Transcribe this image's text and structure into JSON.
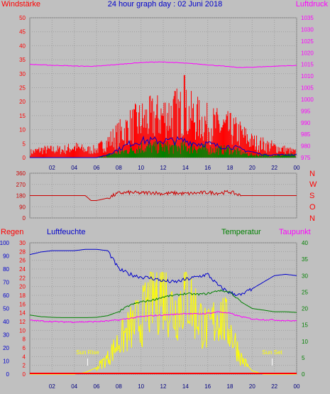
{
  "colors": {
    "background": "#c0c0c0",
    "wind_gust": "#ff0000",
    "wind_avg": "#008000",
    "wind_line": "#0000cc",
    "pressure": "#ff00ff",
    "wind_direction": "#cc0000",
    "rain": "#ff0000",
    "humidity": "#0000cc",
    "temperature": "#008000",
    "dewpoint": "#ff00ff",
    "solar": "#ffff00",
    "sun_marker": "#ffffff",
    "grid": "#a0a0a0"
  },
  "header": {
    "left_label": "Windstärke",
    "title": "24 hour graph day : 02 Juni 2018",
    "right_label": "Luftdruck"
  },
  "x_ticks": [
    "02",
    "04",
    "06",
    "08",
    "10",
    "12",
    "14",
    "16",
    "18",
    "20",
    "22",
    "00"
  ],
  "bottom_headers": {
    "rain": "Regen",
    "humidity": "Luftfeuchte",
    "temperature": "Temperatur",
    "dewpoint": "Taupunkt"
  },
  "direction_labels": [
    "N",
    "W",
    "S",
    "O",
    "N"
  ],
  "sun_labels": {
    "rise": "Sun Rise",
    "set": "Sun Set"
  },
  "chart_data": [
    {
      "type": "bar",
      "title": "24 hour graph day : 02 Juni 2018",
      "xlabel": "",
      "left_axis": {
        "label": "Windstärke",
        "range": [
          0,
          50
        ],
        "ticks": [
          0,
          5,
          10,
          15,
          20,
          25,
          30,
          35,
          40,
          45,
          50
        ]
      },
      "right_axis": {
        "label": "Luftdruck",
        "range": [
          975,
          1035
        ],
        "ticks": [
          975,
          980,
          985,
          990,
          995,
          1000,
          1005,
          1010,
          1015,
          1020,
          1025,
          1030,
          1035
        ]
      },
      "x_hours": [
        0,
        1,
        2,
        3,
        4,
        5,
        6,
        7,
        8,
        9,
        10,
        11,
        12,
        13,
        14,
        15,
        16,
        17,
        18,
        19,
        20,
        21,
        22,
        23,
        24
      ],
      "series": [
        {
          "name": "Windstärke",
          "style": "bars",
          "values": [
            2,
            3,
            3,
            3,
            4,
            3,
            3,
            6,
            9,
            12,
            14,
            15,
            16,
            17,
            17,
            15,
            13,
            12,
            11,
            9,
            6,
            5,
            4,
            3,
            2
          ],
          "peak": 29.5
        },
        {
          "name": "",
          "style": "bars",
          "values": [
            0,
            0,
            0,
            0,
            0,
            0,
            0,
            1,
            2,
            3,
            4,
            4,
            4,
            4,
            4,
            4,
            3,
            3,
            3,
            2,
            1,
            1,
            1,
            1,
            1
          ]
        },
        {
          "name": "",
          "style": "line",
          "values": [
            0,
            0,
            0,
            0,
            0,
            0,
            0,
            1,
            3,
            5,
            6,
            6,
            6,
            6,
            6,
            5,
            5,
            4,
            4,
            3,
            2,
            1,
            1,
            1,
            1
          ]
        },
        {
          "name": "Luftdruck",
          "style": "line",
          "values": [
            1015,
            1014.8,
            1014.6,
            1014.5,
            1014.3,
            1014.2,
            1014.2,
            1014.6,
            1015.0,
            1015.4,
            1015.8,
            1016.0,
            1016.0,
            1015.8,
            1015.5,
            1015.2,
            1014.8,
            1014.4,
            1014.0,
            1013.6,
            1013.8,
            1014.0,
            1014.2,
            1014.4,
            1014.5
          ]
        }
      ],
      "grid": true
    },
    {
      "type": "line",
      "title": "",
      "ylabel": "",
      "left_axis": {
        "range": [
          0,
          360
        ],
        "ticks": [
          0,
          90,
          180,
          270,
          360
        ]
      },
      "right_labels": [
        "N",
        "W",
        "S",
        "O",
        "N"
      ],
      "x_hours": [
        0,
        1,
        2,
        3,
        4,
        4.5,
        5,
        5.5,
        6,
        7,
        8,
        9,
        10,
        11,
        12,
        13,
        14,
        15,
        16,
        17,
        18,
        19,
        20,
        21,
        22,
        23,
        24
      ],
      "series": [
        {
          "name": "",
          "values": [
            180,
            180,
            180,
            180,
            180,
            180,
            180,
            140,
            140,
            160,
            200,
            205,
            200,
            205,
            195,
            200,
            195,
            200,
            205,
            200,
            210,
            180,
            180,
            180,
            180,
            180,
            180
          ]
        }
      ],
      "grid": true
    },
    {
      "type": "line",
      "title": "",
      "axes": {
        "humidity": {
          "label": "Luftfeuchte",
          "range": [
            0,
            100
          ],
          "ticks": [
            0,
            10,
            20,
            30,
            40,
            50,
            60,
            70,
            80,
            90,
            100
          ]
        },
        "rain": {
          "label": "Regen",
          "range": [
            0,
            30
          ],
          "ticks": [
            0,
            2,
            4,
            6,
            8,
            10,
            12,
            14,
            16,
            18,
            20,
            22,
            24,
            26,
            28,
            30
          ]
        },
        "temperature": {
          "label": "Temperatur",
          "range": [
            0,
            40
          ],
          "ticks": [
            0,
            5,
            10,
            15,
            20,
            25,
            30,
            35,
            40
          ]
        }
      },
      "x_hours": [
        0,
        1,
        2,
        3,
        4,
        5,
        6,
        7,
        8,
        9,
        10,
        11,
        12,
        13,
        14,
        15,
        16,
        17,
        18,
        19,
        20,
        21,
        22,
        23,
        24
      ],
      "series": [
        {
          "name": "Luftfeuchte",
          "axis": "humidity",
          "values": [
            91,
            93,
            94,
            94,
            94,
            95,
            95,
            94,
            80,
            76,
            74,
            73,
            71,
            70,
            72,
            74,
            76,
            67,
            62,
            60,
            65,
            70,
            75,
            76,
            75
          ]
        },
        {
          "name": "Temperatur",
          "axis": "temperature",
          "values": [
            18,
            17.5,
            17.3,
            17.2,
            17.2,
            17.2,
            17.3,
            17.8,
            19,
            21,
            22,
            22.5,
            23.5,
            24,
            24.5,
            24.3,
            24.5,
            25.5,
            25,
            22,
            20,
            19.5,
            19,
            19,
            18.8
          ]
        },
        {
          "name": "Taupunkt",
          "axis": "temperature",
          "values": [
            16.4,
            16.2,
            16.0,
            15.9,
            15.9,
            15.9,
            16.0,
            16.2,
            16.5,
            17.0,
            17.5,
            17.8,
            18.0,
            18.2,
            18.5,
            18.3,
            18.5,
            19.0,
            18.5,
            17.5,
            16.8,
            16.6,
            16.5,
            16.3,
            16.2
          ]
        },
        {
          "name": "Regen",
          "axis": "rain",
          "values": [
            0,
            0,
            0,
            0,
            0,
            0,
            0,
            0,
            0,
            0,
            0,
            0,
            0,
            0,
            0,
            0,
            0,
            0,
            0,
            0,
            0,
            0,
            0,
            0,
            0
          ]
        },
        {
          "name": "",
          "axis": "temperature",
          "style": "solar",
          "values": [
            0,
            0,
            0,
            0,
            0,
            0.5,
            2,
            5,
            10,
            14,
            17,
            24,
            27,
            19,
            26,
            19,
            13,
            19,
            14,
            5,
            1,
            0,
            0,
            0,
            0
          ]
        }
      ],
      "annotations": [
        "Sun Rise",
        "Sun Set"
      ],
      "sunrise_hour": 5.2,
      "sunset_hour": 21.8,
      "grid": true
    }
  ]
}
